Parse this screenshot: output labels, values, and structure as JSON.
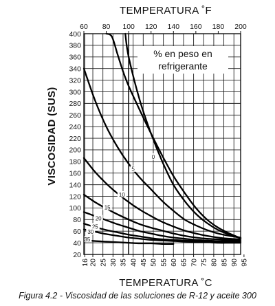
{
  "caption": "Figura 4.2 - Viscosidad de las soluciones de R-12 y aceite 300",
  "chart_data": {
    "type": "line",
    "x_top_label": "TEMPERATURA ˚F",
    "x_bottom_label": "TEMPERATURA ˚C",
    "ylabel": "VISCOSIDAD (SUS)",
    "x_top_range": [
      60,
      200
    ],
    "x_top_ticks": [
      60,
      80,
      100,
      120,
      140,
      160,
      180,
      200
    ],
    "x_bottom_ticks": [
      16,
      20,
      25,
      30,
      35,
      40,
      45,
      50,
      55,
      60,
      65,
      70,
      75,
      80,
      85,
      90,
      95
    ],
    "ylim": [
      20,
      400
    ],
    "y_ticks": [
      20,
      40,
      60,
      80,
      100,
      120,
      140,
      160,
      180,
      200,
      220,
      240,
      260,
      280,
      300,
      320,
      340,
      360,
      380,
      400
    ],
    "legend": [
      "% en peso en",
      "refrigerante"
    ],
    "series": [
      {
        "name": "0",
        "x": [
          80,
          85,
          90,
          95,
          100,
          110,
          120,
          130,
          140,
          150,
          160,
          170,
          180,
          190,
          200
        ],
        "y": [
          400,
          395,
          365,
          335,
          310,
          268,
          228,
          190,
          155,
          126,
          100,
          80,
          66,
          56,
          48
        ]
      },
      {
        "name": "",
        "x": [
          97,
          100,
          110,
          120,
          130,
          140,
          150,
          160,
          170,
          180,
          190,
          200
        ],
        "y": [
          400,
          360,
          285,
          228,
          180,
          140,
          112,
          90,
          74,
          62,
          54,
          48
        ]
      },
      {
        "name": "5",
        "x": [
          60,
          70,
          80,
          90,
          100,
          110,
          120,
          130,
          140,
          150,
          160,
          170,
          180,
          190,
          200
        ],
        "y": [
          340,
          285,
          240,
          205,
          176,
          152,
          132,
          112,
          95,
          80,
          70,
          62,
          56,
          52,
          49
        ]
      },
      {
        "name": "10",
        "x": [
          60,
          70,
          80,
          90,
          100,
          110,
          120,
          130,
          140,
          150,
          160,
          170,
          180,
          190,
          200
        ],
        "y": [
          186,
          162,
          142,
          125,
          110,
          97,
          86,
          76,
          68,
          61,
          56,
          52,
          49,
          47,
          46
        ]
      },
      {
        "name": "15",
        "x": [
          60,
          70,
          80,
          90,
          100,
          110,
          120,
          130,
          140,
          150,
          160,
          170,
          180,
          190,
          200
        ],
        "y": [
          123,
          110,
          99,
          89,
          80,
          72,
          66,
          61,
          56,
          52,
          49,
          47,
          46,
          45,
          44
        ]
      },
      {
        "name": "20",
        "x": [
          60,
          70,
          80,
          90,
          100,
          110,
          120,
          130,
          140,
          150,
          160,
          170,
          180,
          190,
          200
        ],
        "y": [
          93,
          86,
          79,
          72,
          66,
          60,
          56,
          52,
          49,
          47,
          45,
          44,
          43,
          43,
          42
        ]
      },
      {
        "name": "25",
        "x": [
          60,
          70,
          80,
          90,
          100,
          110,
          120,
          130,
          140,
          150,
          160,
          170,
          180,
          190,
          200
        ],
        "y": [
          73,
          67,
          62,
          58,
          54,
          51,
          48,
          46,
          45,
          44,
          43,
          42,
          42,
          41,
          41
        ]
      },
      {
        "name": "30",
        "x": [
          60,
          70,
          80,
          90,
          100,
          110,
          120,
          130,
          140,
          150,
          160,
          170,
          180,
          190,
          200
        ],
        "y": [
          63,
          59,
          55,
          52,
          49,
          47,
          45,
          44,
          43,
          42,
          41,
          41,
          40,
          40,
          40
        ]
      },
      {
        "name": "35",
        "x": [
          60,
          70,
          80,
          90,
          100,
          110,
          120,
          130,
          140
        ],
        "y": [
          45,
          43,
          42,
          41,
          40,
          39,
          39,
          38,
          38
        ]
      }
    ],
    "curve_labels": [
      {
        "text": "0",
        "x": 122,
        "y": 188
      },
      {
        "text": "5",
        "x": 104,
        "y": 167
      },
      {
        "text": "10",
        "x": 94,
        "y": 123
      },
      {
        "text": "15",
        "x": 81,
        "y": 101
      },
      {
        "text": "20",
        "x": 73,
        "y": 82
      },
      {
        "text": "25",
        "x": 70,
        "y": 68
      },
      {
        "text": "30",
        "x": 66,
        "y": 59
      },
      {
        "text": "35",
        "x": 63,
        "y": 46
      }
    ],
    "grid": true
  }
}
